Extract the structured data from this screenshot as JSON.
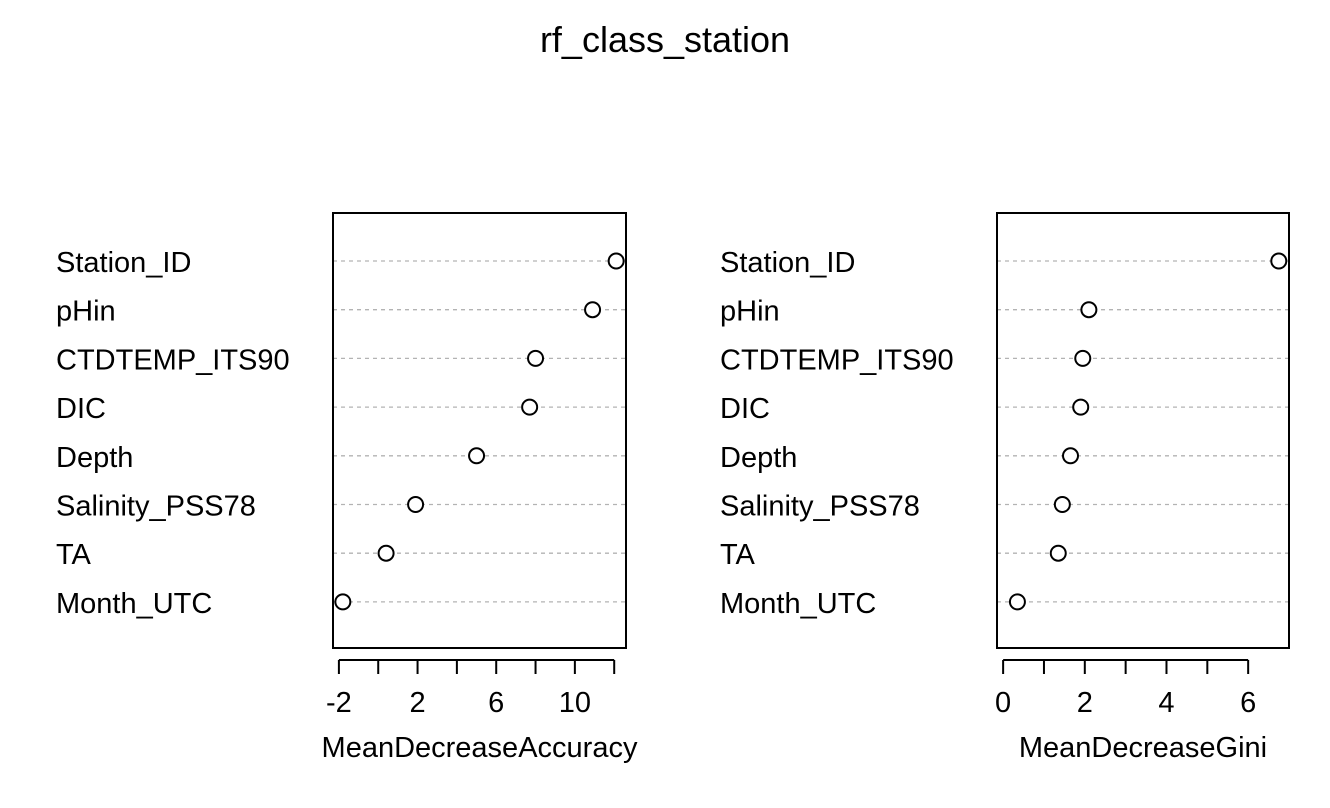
{
  "title": "rf_class_station",
  "chart_data": [
    {
      "type": "scatter",
      "xlabel": "MeanDecreaseAccuracy",
      "xlim": [
        -2.3,
        12.6
      ],
      "xticks": [
        -2,
        0,
        2,
        4,
        6,
        8,
        10,
        12
      ],
      "xtick_labels": [
        "-2",
        "",
        "2",
        "",
        "6",
        "",
        "10",
        ""
      ],
      "grid": "dotted horizontal",
      "categories": [
        "Station_ID",
        "pHin",
        "CTDTEMP_ITS90",
        "DIC",
        "Depth",
        "Salinity_PSS78",
        "TA",
        "Month_UTC"
      ],
      "values": [
        12.1,
        10.9,
        8.0,
        7.7,
        5.0,
        1.9,
        0.4,
        -1.8
      ]
    },
    {
      "type": "scatter",
      "xlabel": "MeanDecreaseGini",
      "xlim": [
        -0.15,
        7.0
      ],
      "xticks": [
        0,
        1,
        2,
        3,
        4,
        5,
        6
      ],
      "xtick_labels": [
        "0",
        "",
        "2",
        "",
        "4",
        "",
        "6"
      ],
      "grid": "dotted horizontal",
      "categories": [
        "Station_ID",
        "pHin",
        "CTDTEMP_ITS90",
        "DIC",
        "Depth",
        "Salinity_PSS78",
        "TA",
        "Month_UTC"
      ],
      "values": [
        6.75,
        2.1,
        1.95,
        1.9,
        1.65,
        1.45,
        1.35,
        0.35
      ]
    }
  ]
}
